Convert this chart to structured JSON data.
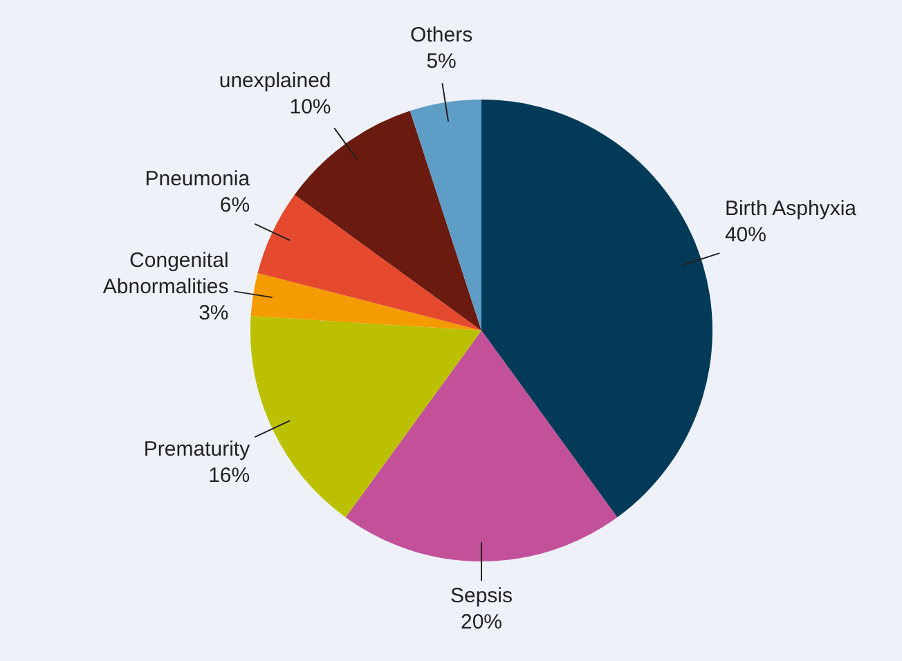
{
  "chart_data": {
    "type": "pie",
    "categories": [
      "Birth Asphyxia",
      "Sepsis",
      "Prematurity",
      "Congenital Abnormalities",
      "Pneumonia",
      "unexplained",
      "Others"
    ],
    "values": [
      40,
      20,
      16,
      3,
      6,
      10,
      5
    ],
    "value_labels": [
      "40%",
      "20%",
      "16%",
      "3%",
      "6%",
      "10%",
      "5%"
    ],
    "colors": [
      "#023a57",
      "#c2519a",
      "#bbc000",
      "#f49b00",
      "#e64a2e",
      "#6b1a10",
      "#5e9ec6"
    ],
    "legend": false
  }
}
